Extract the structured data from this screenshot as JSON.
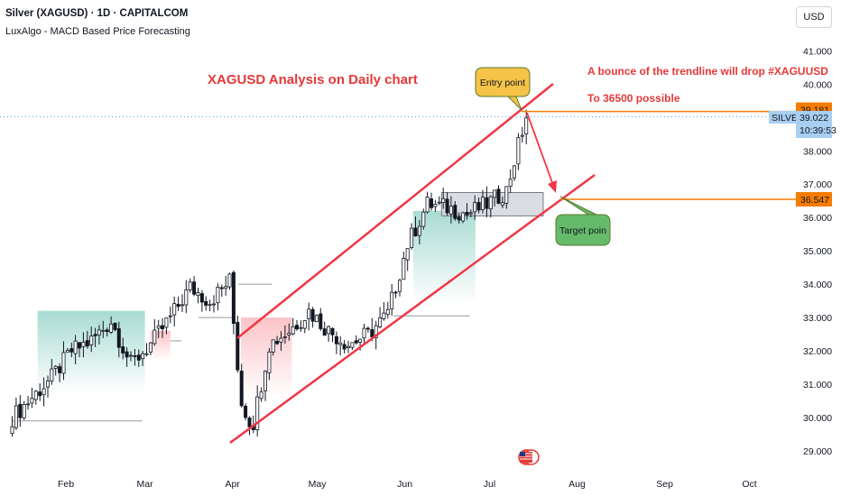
{
  "header": {
    "title": "Silver (XAGUSD) · 1D · CAPITALCOM",
    "indicator": "LuxAlgo - MACD Based Price Forecasting",
    "currency": "USD"
  },
  "annotations": {
    "analysis_title": "XAGUSD Analysis on Daily chart",
    "bounce_line1": "A bounce of the trendline will drop #XAGUUSD",
    "bounce_line2": "To 36500 possible",
    "entry_label": "Entry point",
    "target_label": "Target poin"
  },
  "price_tags": {
    "entry_level": "39.181",
    "symbol_label": "SILVER",
    "last_price": "39.022",
    "countdown": "10:39:53",
    "target_level": "36.547"
  },
  "colors": {
    "candle_up": "#089981",
    "candle_down": "#f23645",
    "channel": "#f23645",
    "level_line": "#f57c00",
    "entry_tag": "#f57c00",
    "last_price_tag": "#a8cff2",
    "callout_fill": "#f4c348",
    "callout_fill_green": "#66bb6a",
    "arrow": "#f23645"
  },
  "chart_data": {
    "type": "candlestick",
    "title": "Silver (XAGUSD) · 1D · CAPITALCOM",
    "ylabel": "USD",
    "x_ticks": [
      "Feb",
      "Mar",
      "Apr",
      "May",
      "Jun",
      "Jul",
      "Aug",
      "Sep",
      "Oct"
    ],
    "y_ticks": [
      "29.000",
      "30.000",
      "31.000",
      "32.000",
      "33.000",
      "34.000",
      "35.000",
      "36.000",
      "37.000",
      "38.000",
      "39.000",
      "40.000",
      "41.000"
    ],
    "ylim": [
      28.6,
      41.6
    ],
    "grid": false,
    "close_path": [
      {
        "date": "2025-01-13",
        "price": 30.0
      },
      {
        "date": "2025-01-20",
        "price": 30.6
      },
      {
        "date": "2025-01-27",
        "price": 31.2
      },
      {
        "date": "2025-02-03",
        "price": 32.0
      },
      {
        "date": "2025-02-10",
        "price": 32.3
      },
      {
        "date": "2025-02-17",
        "price": 32.9
      },
      {
        "date": "2025-02-24",
        "price": 31.6
      },
      {
        "date": "2025-03-03",
        "price": 32.2
      },
      {
        "date": "2025-03-10",
        "price": 33.0
      },
      {
        "date": "2025-03-17",
        "price": 33.9
      },
      {
        "date": "2025-03-24",
        "price": 33.5
      },
      {
        "date": "2025-03-31",
        "price": 34.1
      },
      {
        "date": "2025-04-04",
        "price": 30.5
      },
      {
        "date": "2025-04-08",
        "price": 29.7
      },
      {
        "date": "2025-04-14",
        "price": 32.2
      },
      {
        "date": "2025-04-21",
        "price": 32.6
      },
      {
        "date": "2025-04-28",
        "price": 33.2
      },
      {
        "date": "2025-05-05",
        "price": 32.6
      },
      {
        "date": "2025-05-12",
        "price": 32.2
      },
      {
        "date": "2025-05-19",
        "price": 32.5
      },
      {
        "date": "2025-05-26",
        "price": 33.1
      },
      {
        "date": "2025-06-02",
        "price": 35.2
      },
      {
        "date": "2025-06-09",
        "price": 36.4
      },
      {
        "date": "2025-06-16",
        "price": 36.3
      },
      {
        "date": "2025-06-23",
        "price": 36.1
      },
      {
        "date": "2025-06-30",
        "price": 36.4
      },
      {
        "date": "2025-07-07",
        "price": 36.8
      },
      {
        "date": "2025-07-11",
        "price": 38.1
      },
      {
        "date": "2025-07-14",
        "price": 39.022
      }
    ],
    "levels": [
      {
        "name": "Entry point",
        "price": 39.181
      },
      {
        "name": "Target poin",
        "price": 36.547
      }
    ]
  }
}
